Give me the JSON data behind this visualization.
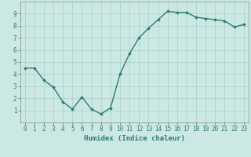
{
  "x": [
    0,
    1,
    2,
    3,
    4,
    5,
    6,
    7,
    8,
    9,
    10,
    11,
    12,
    13,
    14,
    15,
    16,
    17,
    18,
    19,
    20,
    21,
    22,
    23
  ],
  "y": [
    4.5,
    4.5,
    3.5,
    2.9,
    1.7,
    1.1,
    2.1,
    1.1,
    0.7,
    1.2,
    4.0,
    5.7,
    7.0,
    7.8,
    8.5,
    9.2,
    9.1,
    9.1,
    8.7,
    8.6,
    8.5,
    8.4,
    7.9,
    8.1
  ],
  "line_color": "#2e7d6e",
  "marker": "D",
  "marker_size": 1.8,
  "bg_color": "#cce8e4",
  "grid_color": "#aacfca",
  "xlabel": "Humidex (Indice chaleur)",
  "xlim": [
    -0.5,
    23.5
  ],
  "ylim": [
    0,
    10
  ],
  "yticks": [
    1,
    2,
    3,
    4,
    5,
    6,
    7,
    8,
    9
  ],
  "xticks": [
    0,
    1,
    2,
    3,
    4,
    5,
    6,
    7,
    8,
    9,
    10,
    11,
    12,
    13,
    14,
    15,
    16,
    17,
    18,
    19,
    20,
    21,
    22,
    23
  ],
  "tick_fontsize": 5.5,
  "xlabel_fontsize": 6.5,
  "line_width": 1.0
}
